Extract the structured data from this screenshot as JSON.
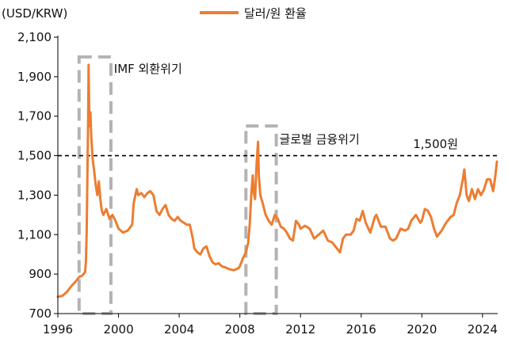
{
  "chart_data": {
    "type": "line",
    "unit_label": "(USD/KRW)",
    "legend": {
      "position": "top-center",
      "entries": [
        {
          "label": "달러/원 환율",
          "color": "#ec7d31"
        }
      ]
    },
    "xlim": [
      1996,
      2025
    ],
    "ylim": [
      700,
      2100
    ],
    "x_ticks": [
      1996,
      2000,
      2004,
      2008,
      2012,
      2016,
      2020,
      2024
    ],
    "x_tick_labels": [
      "1996",
      "2000",
      "2004",
      "2008",
      "2012",
      "2016",
      "2020",
      "2024"
    ],
    "y_ticks": [
      700,
      900,
      1100,
      1300,
      1500,
      1700,
      1900,
      2100
    ],
    "y_tick_labels": [
      "700",
      "900",
      "1,100",
      "1,300",
      "1,500",
      "1,700",
      "1,900",
      "2,100"
    ],
    "grid": false,
    "reference_line": {
      "y": 1500,
      "label": "1,500원"
    },
    "annotations": [
      {
        "label": "IMF 외환위기",
        "x_range": [
          1997.4,
          1999.5
        ],
        "y_range": [
          700,
          2000
        ]
      },
      {
        "label": "글로벌 금융위기",
        "x_range": [
          2008.4,
          2010.4
        ],
        "y_range": [
          700,
          1650
        ]
      }
    ],
    "series": [
      {
        "name": "달러/원 환율",
        "color": "#ec7d31",
        "points": [
          [
            1996.0,
            785
          ],
          [
            1996.3,
            790
          ],
          [
            1996.6,
            810
          ],
          [
            1996.9,
            840
          ],
          [
            1997.2,
            865
          ],
          [
            1997.4,
            885
          ],
          [
            1997.6,
            892
          ],
          [
            1997.8,
            910
          ],
          [
            1997.85,
            960
          ],
          [
            1997.9,
            1120
          ],
          [
            1997.95,
            1400
          ],
          [
            1998.0,
            1700
          ],
          [
            1998.03,
            1960
          ],
          [
            1998.08,
            1650
          ],
          [
            1998.15,
            1720
          ],
          [
            1998.2,
            1600
          ],
          [
            1998.3,
            1480
          ],
          [
            1998.4,
            1420
          ],
          [
            1998.5,
            1350
          ],
          [
            1998.6,
            1300
          ],
          [
            1998.7,
            1370
          ],
          [
            1998.8,
            1280
          ],
          [
            1998.9,
            1220
          ],
          [
            1999.0,
            1200
          ],
          [
            1999.2,
            1230
          ],
          [
            1999.4,
            1180
          ],
          [
            1999.6,
            1200
          ],
          [
            1999.8,
            1170
          ],
          [
            2000.0,
            1130
          ],
          [
            2000.3,
            1110
          ],
          [
            2000.6,
            1120
          ],
          [
            2000.9,
            1150
          ],
          [
            2001.0,
            1260
          ],
          [
            2001.2,
            1330
          ],
          [
            2001.3,
            1300
          ],
          [
            2001.5,
            1310
          ],
          [
            2001.7,
            1290
          ],
          [
            2001.9,
            1310
          ],
          [
            2002.1,
            1320
          ],
          [
            2002.3,
            1300
          ],
          [
            2002.5,
            1220
          ],
          [
            2002.7,
            1200
          ],
          [
            2002.9,
            1230
          ],
          [
            2003.1,
            1250
          ],
          [
            2003.3,
            1200
          ],
          [
            2003.5,
            1180
          ],
          [
            2003.7,
            1170
          ],
          [
            2003.9,
            1190
          ],
          [
            2004.1,
            1170
          ],
          [
            2004.3,
            1160
          ],
          [
            2004.5,
            1150
          ],
          [
            2004.7,
            1150
          ],
          [
            2004.9,
            1080
          ],
          [
            2005.0,
            1030
          ],
          [
            2005.2,
            1010
          ],
          [
            2005.4,
            1000
          ],
          [
            2005.6,
            1030
          ],
          [
            2005.8,
            1040
          ],
          [
            2006.0,
            990
          ],
          [
            2006.2,
            960
          ],
          [
            2006.4,
            950
          ],
          [
            2006.6,
            955
          ],
          [
            2006.8,
            940
          ],
          [
            2007.0,
            935
          ],
          [
            2007.3,
            925
          ],
          [
            2007.6,
            920
          ],
          [
            2007.9,
            930
          ],
          [
            2008.0,
            940
          ],
          [
            2008.2,
            980
          ],
          [
            2008.4,
            1010
          ],
          [
            2008.55,
            1060
          ],
          [
            2008.65,
            1150
          ],
          [
            2008.75,
            1300
          ],
          [
            2008.85,
            1400
          ],
          [
            2008.9,
            1320
          ],
          [
            2009.0,
            1280
          ],
          [
            2009.1,
            1450
          ],
          [
            2009.2,
            1570
          ],
          [
            2009.25,
            1400
          ],
          [
            2009.35,
            1300
          ],
          [
            2009.5,
            1260
          ],
          [
            2009.7,
            1200
          ],
          [
            2009.9,
            1170
          ],
          [
            2010.1,
            1150
          ],
          [
            2010.3,
            1200
          ],
          [
            2010.5,
            1180
          ],
          [
            2010.7,
            1140
          ],
          [
            2010.9,
            1130
          ],
          [
            2011.1,
            1110
          ],
          [
            2011.3,
            1080
          ],
          [
            2011.5,
            1070
          ],
          [
            2011.7,
            1170
          ],
          [
            2011.9,
            1150
          ],
          [
            2012.0,
            1130
          ],
          [
            2012.3,
            1145
          ],
          [
            2012.6,
            1130
          ],
          [
            2012.9,
            1080
          ],
          [
            2013.2,
            1100
          ],
          [
            2013.5,
            1120
          ],
          [
            2013.8,
            1070
          ],
          [
            2014.1,
            1060
          ],
          [
            2014.4,
            1030
          ],
          [
            2014.6,
            1010
          ],
          [
            2014.8,
            1080
          ],
          [
            2015.0,
            1100
          ],
          [
            2015.3,
            1100
          ],
          [
            2015.5,
            1120
          ],
          [
            2015.7,
            1180
          ],
          [
            2015.9,
            1170
          ],
          [
            2016.1,
            1220
          ],
          [
            2016.3,
            1160
          ],
          [
            2016.6,
            1110
          ],
          [
            2016.9,
            1190
          ],
          [
            2017.0,
            1200
          ],
          [
            2017.3,
            1140
          ],
          [
            2017.6,
            1140
          ],
          [
            2017.9,
            1080
          ],
          [
            2018.1,
            1070
          ],
          [
            2018.3,
            1080
          ],
          [
            2018.6,
            1130
          ],
          [
            2018.9,
            1120
          ],
          [
            2019.1,
            1130
          ],
          [
            2019.3,
            1170
          ],
          [
            2019.6,
            1200
          ],
          [
            2019.9,
            1160
          ],
          [
            2020.0,
            1170
          ],
          [
            2020.2,
            1230
          ],
          [
            2020.4,
            1220
          ],
          [
            2020.6,
            1190
          ],
          [
            2020.8,
            1130
          ],
          [
            2021.0,
            1090
          ],
          [
            2021.3,
            1120
          ],
          [
            2021.6,
            1160
          ],
          [
            2021.9,
            1190
          ],
          [
            2022.1,
            1200
          ],
          [
            2022.3,
            1260
          ],
          [
            2022.5,
            1300
          ],
          [
            2022.7,
            1380
          ],
          [
            2022.8,
            1430
          ],
          [
            2022.95,
            1300
          ],
          [
            2023.1,
            1270
          ],
          [
            2023.3,
            1330
          ],
          [
            2023.5,
            1280
          ],
          [
            2023.7,
            1330
          ],
          [
            2023.9,
            1300
          ],
          [
            2024.1,
            1330
          ],
          [
            2024.3,
            1380
          ],
          [
            2024.5,
            1380
          ],
          [
            2024.7,
            1320
          ],
          [
            2024.85,
            1400
          ],
          [
            2024.95,
            1470
          ]
        ]
      }
    ]
  }
}
